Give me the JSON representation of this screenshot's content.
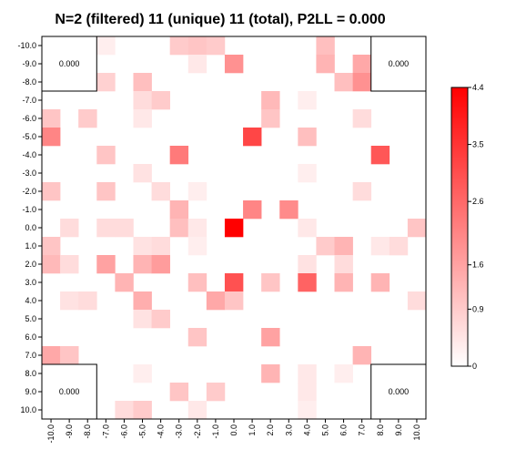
{
  "chart_data": {
    "type": "heatmap",
    "title": "N=2 (filtered) 11 (unique) 11 (total), P2LL = 0.000",
    "x_ticks": [
      "-10.0",
      "-9.0",
      "-8.0",
      "-7.0",
      "-6.0",
      "-5.0",
      "-4.0",
      "-3.0",
      "-2.0",
      "-1.0",
      "0.0",
      "1.0",
      "2.0",
      "3.0",
      "4.0",
      "5.0",
      "6.0",
      "7.0",
      "8.0",
      "9.0",
      "10.0"
    ],
    "y_ticks": [
      "-10.0",
      "-9.0",
      "-8.0",
      "-7.0",
      "-6.0",
      "-5.0",
      "-4.0",
      "-3.0",
      "-2.0",
      "-1.0",
      "0.0",
      "1.0",
      "2.0",
      "3.0",
      "4.0",
      "5.0",
      "6.0",
      "7.0",
      "8.0",
      "9.0",
      "10.0"
    ],
    "corner_labels": [
      "0.000",
      "0.000",
      "0.000",
      "0.000"
    ],
    "colorbar": {
      "min": 0,
      "max": 4.4,
      "ticks": [
        "0",
        "0.9",
        "1.6",
        "2.6",
        "3.5",
        "4.4"
      ],
      "low_color": "#ffffff",
      "high_color": "#ff0000"
    },
    "values": [
      [
        0,
        0,
        0,
        0.3,
        0,
        0,
        0,
        0.9,
        1.0,
        0.9,
        0,
        0,
        0,
        0,
        0,
        1.1,
        0,
        0,
        0,
        0,
        0
      ],
      [
        0,
        0,
        0,
        0,
        0,
        0,
        0,
        0,
        0.4,
        0,
        1.9,
        0,
        0,
        0,
        0,
        1.3,
        0,
        1.5,
        1.1,
        0,
        0
      ],
      [
        0,
        1.1,
        0,
        0.8,
        0,
        1.1,
        0,
        0,
        0,
        0,
        0,
        0,
        0,
        0,
        0,
        0,
        1.1,
        1.9,
        0,
        0,
        0
      ],
      [
        0,
        0,
        0,
        0,
        0,
        0.6,
        0.9,
        0,
        0,
        0,
        0,
        0,
        1.2,
        0,
        0.3,
        0,
        0,
        0,
        0,
        0,
        0
      ],
      [
        1.0,
        0,
        0.9,
        0,
        0,
        0.4,
        0,
        0,
        0,
        0,
        0,
        0,
        1.0,
        0,
        0,
        0,
        0,
        0.6,
        0,
        0,
        0
      ],
      [
        2.1,
        0,
        0,
        0,
        0,
        0,
        0,
        0,
        0,
        0,
        0,
        3.2,
        0,
        0,
        1.1,
        0,
        0,
        0,
        0,
        0,
        0
      ],
      [
        0,
        0,
        0,
        1.0,
        0,
        0,
        0,
        2.3,
        0,
        0,
        0,
        0,
        0,
        0,
        0,
        0,
        0,
        0,
        2.9,
        0,
        0
      ],
      [
        0,
        0,
        0,
        0,
        0,
        0.5,
        0,
        0,
        0,
        0,
        0,
        0,
        0,
        0,
        0.3,
        0,
        0,
        0,
        0,
        0,
        0
      ],
      [
        1.0,
        0,
        0,
        1.0,
        0,
        0,
        0.6,
        0,
        0.3,
        0,
        0,
        0,
        0,
        0,
        0,
        0,
        0,
        0.6,
        0,
        0,
        0
      ],
      [
        0,
        0,
        0,
        0,
        0,
        0,
        0,
        1.3,
        0,
        0,
        0,
        2.1,
        0,
        2.0,
        0,
        0,
        0,
        0,
        0,
        0,
        0
      ],
      [
        0,
        0.6,
        0,
        0.6,
        0.6,
        0,
        0,
        1.1,
        0.4,
        0,
        4.4,
        0,
        0,
        0,
        0.4,
        0,
        0,
        0,
        0,
        0,
        1.0
      ],
      [
        1.0,
        0,
        0,
        0,
        0,
        0.5,
        0.6,
        0,
        0.3,
        0,
        0,
        0,
        0,
        0,
        0,
        0.9,
        1.3,
        0,
        0.4,
        0.6,
        0
      ],
      [
        1.2,
        0.6,
        0,
        1.6,
        0,
        1.3,
        1.7,
        0,
        0,
        0,
        0,
        0,
        0,
        0,
        0.5,
        0,
        0.6,
        0,
        0,
        0,
        0
      ],
      [
        0,
        0,
        0,
        0,
        1.3,
        0,
        0,
        0,
        1.1,
        0,
        3.0,
        0,
        1.0,
        0,
        2.7,
        0,
        1.3,
        0,
        1.3,
        0,
        0
      ],
      [
        0,
        0.5,
        0.6,
        0,
        0,
        1.4,
        0,
        0,
        0,
        1.5,
        1.0,
        0,
        0,
        0,
        0,
        0,
        0,
        0,
        0,
        0,
        0.6
      ],
      [
        0,
        0,
        0,
        0,
        0,
        0.5,
        0.9,
        0,
        0,
        0,
        0,
        0,
        0,
        0,
        0,
        0,
        0,
        0,
        0,
        0,
        0
      ],
      [
        0,
        0,
        0,
        0,
        0,
        0,
        0,
        0,
        1.0,
        0,
        0,
        0,
        1.6,
        0,
        0,
        0,
        0,
        0,
        0,
        0,
        0
      ],
      [
        1.5,
        1.0,
        0,
        0,
        0,
        0,
        0,
        0,
        0,
        0,
        0,
        0,
        0,
        0,
        0,
        0,
        0,
        1.3,
        0,
        0,
        0
      ],
      [
        0,
        0,
        0,
        0,
        0,
        0.3,
        0,
        0,
        0,
        0,
        0,
        0,
        1.3,
        0,
        0.4,
        0,
        0.3,
        0,
        0,
        0.7,
        0
      ],
      [
        1.5,
        0,
        0,
        0,
        0,
        0,
        0,
        1.0,
        0,
        0.9,
        0,
        0,
        0,
        0,
        0.4,
        0,
        0,
        0,
        0,
        0,
        0
      ],
      [
        1.4,
        0.6,
        0,
        0,
        0.6,
        0.9,
        0,
        0,
        0.4,
        0,
        0,
        0,
        0,
        0,
        0.3,
        0,
        0,
        0,
        0,
        0,
        0
      ]
    ]
  }
}
